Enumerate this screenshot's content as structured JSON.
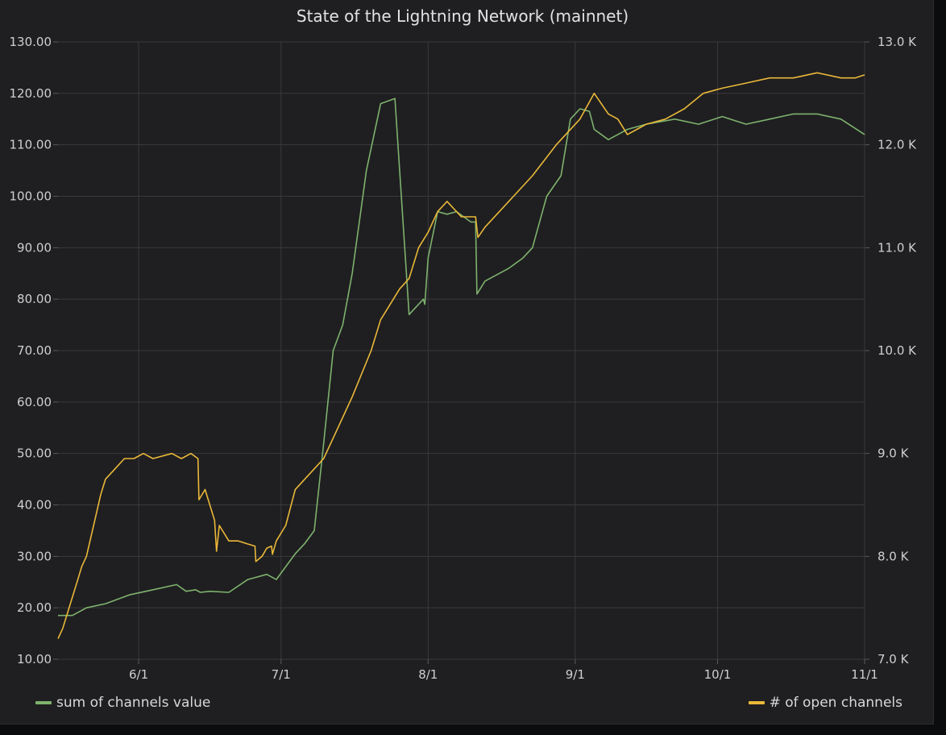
{
  "chart_data": {
    "type": "line",
    "title": "State of the Lightning Network (mainnet)",
    "x_ticks": [
      "6/1",
      "7/1",
      "8/1",
      "9/1",
      "10/1",
      "11/1"
    ],
    "x_tick_days": [
      17,
      47,
      78,
      109,
      139,
      170
    ],
    "x_range_days": [
      0,
      170
    ],
    "left_axis": {
      "ylim": [
        10,
        130
      ],
      "ticks": [
        "130.00",
        "120.00",
        "110.00",
        "100.00",
        "90.00",
        "80.00",
        "70.00",
        "60.00",
        "50.00",
        "40.00",
        "30.00",
        "20.00",
        "10.00"
      ]
    },
    "right_axis": {
      "ylim": [
        7000,
        13000
      ],
      "ticks": [
        "13.0 K",
        "12.0 K",
        "11.0 K",
        "10.0 K",
        "9.0 K",
        "8.0 K",
        "7.0 K"
      ]
    },
    "grid": true,
    "legend_placement": "bottom",
    "series": [
      {
        "name": "sum of channels value",
        "axis": "left",
        "color": "#7eb26d",
        "x": [
          0,
          3,
          6,
          10,
          15,
          20,
          25,
          27,
          29,
          30,
          32,
          36,
          40,
          44,
          46,
          48,
          50,
          52,
          54,
          56,
          58,
          60,
          62,
          65,
          68,
          71,
          74,
          77,
          77.3,
          78,
          80,
          82,
          84,
          87,
          88,
          88.3,
          90,
          95,
          98,
          100,
          103,
          106,
          108,
          110,
          112,
          113,
          116,
          120,
          124,
          130,
          135,
          140,
          145,
          150,
          155,
          160,
          165,
          170
        ],
        "y": [
          18.5,
          18.5,
          20,
          20.8,
          22.5,
          23.5,
          24.5,
          23.2,
          23.5,
          23,
          23.2,
          23,
          25.5,
          26.5,
          25.5,
          28,
          30.5,
          32.5,
          35,
          52,
          70,
          75,
          85,
          105,
          118,
          119,
          77,
          80,
          79,
          88,
          97,
          96.5,
          97,
          95,
          95,
          81,
          83.5,
          86,
          88,
          90,
          100,
          104,
          115,
          117,
          116.5,
          113,
          111,
          113,
          114,
          115,
          114,
          115.5,
          114,
          115,
          116,
          116,
          115,
          112
        ]
      },
      {
        "name": "# of open channels",
        "axis": "right",
        "color": "#eab839",
        "x": [
          0,
          1,
          2,
          3,
          4,
          5,
          6,
          7,
          8,
          9,
          10,
          12,
          14,
          16,
          18,
          20,
          24,
          26,
          28,
          29.5,
          29.7,
          31,
          33,
          33.4,
          34,
          36,
          38,
          40,
          41.5,
          41.7,
          43,
          44,
          45,
          45.2,
          46,
          48,
          50,
          53,
          56,
          59,
          62,
          66,
          68,
          70,
          72,
          74,
          76,
          78,
          80,
          82,
          85,
          88,
          88.5,
          90,
          95,
          100,
          105,
          110,
          113,
          116,
          118,
          120,
          122,
          124,
          128,
          132,
          136,
          140,
          145,
          150,
          155,
          160,
          165,
          168,
          170
        ],
        "y": [
          7200,
          7300,
          7450,
          7600,
          7750,
          7900,
          8000,
          8200,
          8400,
          8600,
          8750,
          8850,
          8950,
          8950,
          9000,
          8950,
          9000,
          8950,
          9000,
          8950,
          8550,
          8650,
          8350,
          8050,
          8300,
          8150,
          8150,
          8120,
          8100,
          7950,
          8000,
          8080,
          8100,
          8020,
          8150,
          8300,
          8650,
          8800,
          8950,
          9250,
          9550,
          10000,
          10300,
          10450,
          10600,
          10700,
          11000,
          11150,
          11350,
          11450,
          11300,
          11300,
          11100,
          11200,
          11450,
          11700,
          12000,
          12250,
          12500,
          12300,
          12250,
          12100,
          12150,
          12200,
          12250,
          12350,
          12500,
          12550,
          12600,
          12650,
          12650,
          12700,
          12650,
          12650,
          12680
        ]
      }
    ]
  }
}
